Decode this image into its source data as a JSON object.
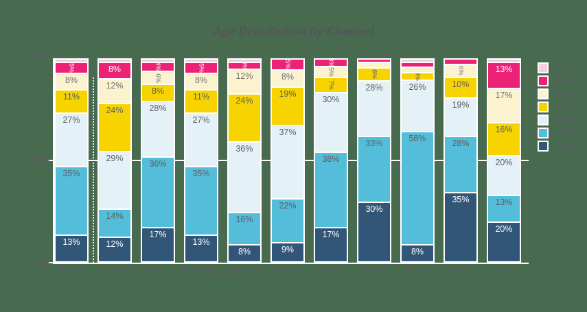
{
  "page": {
    "title": "Age Distribution by Channel"
  },
  "colors": {
    "background": "#486A4F",
    "axis": "#FFFFFF",
    "gridline": "#FFFFFF",
    "title_text": "#53545A",
    "axis_text": "#5D5E64",
    "label_dark": "#5C5D63",
    "label_light": "#FFFFFF"
  },
  "chart_data": {
    "type": "bar",
    "stacked": true,
    "units": "percent",
    "title": "Age Distribution by Channel",
    "xlabel": "",
    "ylabel": "",
    "ylim": [
      0,
      100
    ],
    "grid": "single line at 50%",
    "legend_position": "right",
    "y_axis": {
      "ticks": [
        {
          "label": "100%",
          "value": 100
        },
        {
          "label": "50%",
          "value": 50
        },
        {
          "label": "0%",
          "value": 0
        }
      ],
      "gridline_at": 50
    },
    "categories": [
      "Twitter",
      "Facebook",
      "Blogs",
      "Microblogs",
      "Instagram",
      "Pinterest",
      "Tumblr",
      "Reddit",
      "Weibo",
      "TikTok",
      "Vk"
    ],
    "legend_order_top_down": [
      "65+",
      "55-64",
      "45-54",
      "35-44",
      "25-34",
      "19-24",
      "13-18"
    ],
    "series": [
      {
        "name": "13-18",
        "color": "#325677",
        "label_color": "#FFFFFF",
        "values": [
          13,
          12,
          17,
          13,
          8,
          9,
          17,
          30,
          8,
          35,
          20
        ],
        "label_modes": [
          "h",
          "h",
          "h",
          "h",
          "h",
          "h",
          "h",
          "h",
          "h",
          "h",
          "h"
        ]
      },
      {
        "name": "19-24",
        "color": "#54BDD9",
        "label_color": "#5C5D63",
        "values": [
          35,
          14,
          36,
          35,
          16,
          22,
          38,
          33,
          58,
          28,
          13
        ],
        "label_modes": [
          "h",
          "h",
          "h",
          "h",
          "h",
          "h",
          "h",
          "h",
          "h",
          "h",
          "h"
        ]
      },
      {
        "name": "25-34",
        "color": "#E4F1F7",
        "label_color": "#5C5D63",
        "values": [
          27,
          29,
          28,
          27,
          36,
          37,
          30,
          28,
          26,
          19,
          20
        ],
        "label_modes": [
          "h",
          "h",
          "h",
          "h",
          "h",
          "h",
          "h",
          "h",
          "h",
          "h",
          "h"
        ]
      },
      {
        "name": "35-44",
        "color": "#F7D400",
        "label_color": "#5C5D63",
        "values": [
          11,
          24,
          8,
          11,
          24,
          19,
          7,
          6,
          3,
          10,
          16
        ],
        "label_modes": [
          "h",
          "h",
          "h",
          "h",
          "h",
          "h",
          "v",
          "v",
          "v",
          "h",
          "h"
        ]
      },
      {
        "name": "45-54",
        "color": "#FBF2CF",
        "label_color": "#707177",
        "values": [
          8,
          12,
          6,
          8,
          12,
          8,
          5,
          2,
          2,
          6,
          17
        ],
        "label_modes": [
          "h",
          "h",
          "v",
          "h",
          "h",
          "h",
          "v",
          "",
          "",
          "v",
          "h"
        ]
      },
      {
        "name": "55-64",
        "color": "#EC2277",
        "label_color": "#FFFFFF",
        "values": [
          5,
          8,
          4,
          5,
          3,
          5,
          3,
          1,
          2,
          2,
          13
        ],
        "label_modes": [
          "v",
          "h",
          "v",
          "v",
          "v",
          "v",
          "v",
          "",
          "",
          "",
          "h"
        ]
      },
      {
        "name": "65+",
        "color": "#F7C9DD",
        "label_color": "#FFFFFF",
        "pattern": "dots",
        "values": [
          1,
          1,
          1,
          1,
          1,
          0,
          0,
          0,
          1,
          0,
          1
        ],
        "label_modes": [
          "",
          "",
          "",
          "",
          "",
          "",
          "",
          "",
          "",
          "",
          ""
        ]
      }
    ]
  }
}
